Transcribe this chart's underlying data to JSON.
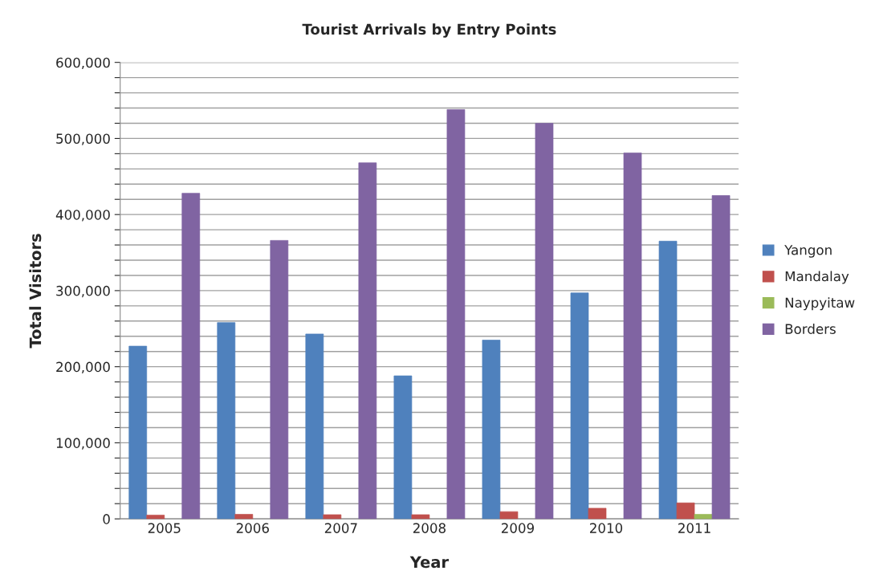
{
  "chart_data": {
    "type": "bar",
    "title": "Tourist Arrivals by Entry Points",
    "xlabel": "Year",
    "ylabel": "Total Visitors",
    "categories": [
      "2005",
      "2006",
      "2007",
      "2008",
      "2009",
      "2010",
      "2011"
    ],
    "series": [
      {
        "name": "Yangon",
        "color": "#4f81bd",
        "values": [
          227000,
          258000,
          243000,
          188000,
          235000,
          297000,
          365000
        ]
      },
      {
        "name": "Mandalay",
        "color": "#c0504d",
        "values": [
          5000,
          6000,
          5500,
          5500,
          9500,
          14000,
          21000
        ]
      },
      {
        "name": "Naypyitaw",
        "color": "#9bbb59",
        "values": [
          null,
          null,
          null,
          null,
          null,
          null,
          6000
        ]
      },
      {
        "name": "Borders",
        "color": "#8064a2",
        "values": [
          428000,
          366000,
          468000,
          538000,
          520000,
          481000,
          425000
        ]
      }
    ],
    "ylim": [
      0,
      600000
    ],
    "yticks": [
      {
        "value": 0,
        "label": "0"
      },
      {
        "value": 20000,
        "label": null
      },
      {
        "value": 40000,
        "label": null
      },
      {
        "value": 60000,
        "label": null
      },
      {
        "value": 80000,
        "label": null
      },
      {
        "value": 100000,
        "label": "100,000"
      },
      {
        "value": 120000,
        "label": null
      },
      {
        "value": 140000,
        "label": null
      },
      {
        "value": 160000,
        "label": null
      },
      {
        "value": 180000,
        "label": null
      },
      {
        "value": 200000,
        "label": "200,000"
      },
      {
        "value": 220000,
        "label": null
      },
      {
        "value": 240000,
        "label": null
      },
      {
        "value": 260000,
        "label": null
      },
      {
        "value": 280000,
        "label": null
      },
      {
        "value": 300000,
        "label": "300,000"
      },
      {
        "value": 320000,
        "label": null
      },
      {
        "value": 340000,
        "label": null
      },
      {
        "value": 360000,
        "label": null
      },
      {
        "value": 380000,
        "label": null
      },
      {
        "value": 400000,
        "label": "400,000"
      },
      {
        "value": 420000,
        "label": null
      },
      {
        "value": 440000,
        "label": null
      },
      {
        "value": 460000,
        "label": null
      },
      {
        "value": 480000,
        "label": null
      },
      {
        "value": 500000,
        "label": "500,000"
      },
      {
        "value": 520000,
        "label": null
      },
      {
        "value": 540000,
        "label": null
      },
      {
        "value": 560000,
        "label": null
      },
      {
        "value": 580000,
        "label": null
      },
      {
        "value": 600000,
        "label": "600,000"
      }
    ],
    "grid": "y",
    "legend": "right"
  }
}
